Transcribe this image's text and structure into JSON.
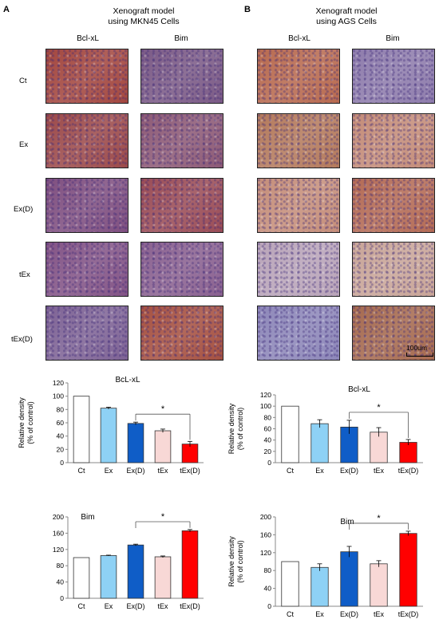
{
  "panels": {
    "A": {
      "letter": "A",
      "header": [
        "Xenograft model",
        "using MKN45 Cells"
      ]
    },
    "B": {
      "letter": "B",
      "header": [
        "Xenograft model",
        "using AGS Cells"
      ]
    }
  },
  "column_headers": [
    "Bcl-xL",
    "Bim"
  ],
  "row_labels": [
    "Ct",
    "Ex",
    "Ex(D)",
    "tEx",
    "tEx(D)"
  ],
  "scale_bar": "100um",
  "tile_colors": {
    "A": [
      [
        "#a3473f",
        "#7b5a86"
      ],
      [
        "#9c4a4a",
        "#8d5a76"
      ],
      [
        "#7f4f80",
        "#9a4c56"
      ],
      [
        "#835486",
        "#8a6190"
      ],
      [
        "#7e6395",
        "#a65141"
      ]
    ],
    "B": [
      [
        "#b86a4f",
        "#8e7cac"
      ],
      [
        "#b47a5c",
        "#c48c78"
      ],
      [
        "#c58e7a",
        "#b46b55"
      ],
      [
        "#b9a4b9",
        "#c9a598"
      ],
      [
        "#8d87b9",
        "#a66a4f"
      ]
    ]
  },
  "series_colors": [
    "#ffffff",
    "#8ed1f5",
    "#0f5dc7",
    "#f8d8d6",
    "#ff0000"
  ],
  "chart_data": [
    {
      "type": "bar",
      "panel": "A",
      "title": "BcL-xL",
      "ylabel": "Relative density\n(% of control)",
      "categories": [
        "Ct",
        "Ex",
        "Ex(D)",
        "tEx",
        "tEx(D)"
      ],
      "values": [
        100,
        82,
        59,
        48,
        28
      ],
      "errors": [
        0,
        1.5,
        2,
        2.5,
        4
      ],
      "ylim": [
        0,
        120
      ],
      "yticks": [
        0,
        20,
        40,
        60,
        80,
        100,
        120
      ],
      "significance": {
        "from": 2,
        "to": 4,
        "label": "*"
      }
    },
    {
      "type": "bar",
      "panel": "B",
      "title": "Bcl-xL",
      "ylabel": "Relative density\n(% of control)",
      "categories": [
        "Ct",
        "Ex",
        "Ex(D)",
        "tEx",
        "tEx(D)"
      ],
      "values": [
        100,
        69,
        63,
        54,
        36
      ],
      "errors": [
        0,
        7,
        12,
        8,
        5
      ],
      "ylim": [
        0,
        120
      ],
      "yticks": [
        0,
        20,
        40,
        60,
        80,
        100,
        120
      ],
      "significance": {
        "from": 2,
        "to": 4,
        "label": "*"
      }
    },
    {
      "type": "bar",
      "panel": "A",
      "title": "Bim",
      "ylabel": "",
      "categories": [
        "Ct",
        "Ex",
        "Ex(D)",
        "tEx",
        "tEx(D)"
      ],
      "values": [
        100,
        105,
        131,
        102,
        166
      ],
      "errors": [
        0,
        1,
        2,
        2,
        3
      ],
      "ylim": [
        0,
        200
      ],
      "yticks": [
        0,
        40,
        80,
        120,
        160,
        200
      ],
      "significance": {
        "from": 2,
        "to": 4,
        "label": "*"
      }
    },
    {
      "type": "bar",
      "panel": "B",
      "title": "Bim",
      "ylabel": "Relative density\n(% of control)",
      "categories": [
        "Ct",
        "Ex",
        "Ex(D)",
        "tEx",
        "tEx(D)"
      ],
      "values": [
        100,
        87,
        122,
        95,
        163
      ],
      "errors": [
        0,
        8,
        12,
        7,
        5
      ],
      "ylim": [
        0,
        200
      ],
      "yticks": [
        0,
        40,
        80,
        120,
        160,
        200
      ],
      "significance": {
        "from": 2,
        "to": 4,
        "label": "*"
      }
    }
  ]
}
